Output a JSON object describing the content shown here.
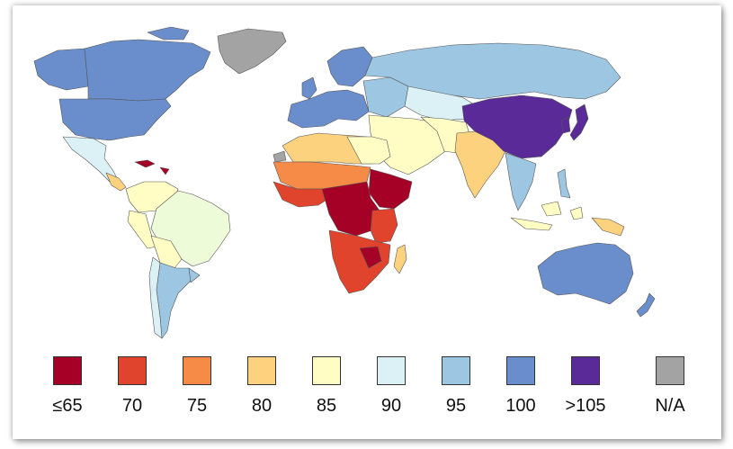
{
  "legend": [
    {
      "label": "≤65",
      "color": "#a50026"
    },
    {
      "label": "70",
      "color": "#e0442c"
    },
    {
      "label": "75",
      "color": "#f68b47"
    },
    {
      "label": "80",
      "color": "#fdd27f"
    },
    {
      "label": "85",
      "color": "#fffdc4"
    },
    {
      "label": "90",
      "color": "#dcf1f5"
    },
    {
      "label": "95",
      "color": "#9dc6e2"
    },
    {
      "label": "100",
      "color": "#6a8ecb"
    },
    {
      "label": ">105",
      "color": "#5a2a98"
    },
    {
      "label": "N/A",
      "color": "#a3a3a3"
    }
  ]
}
